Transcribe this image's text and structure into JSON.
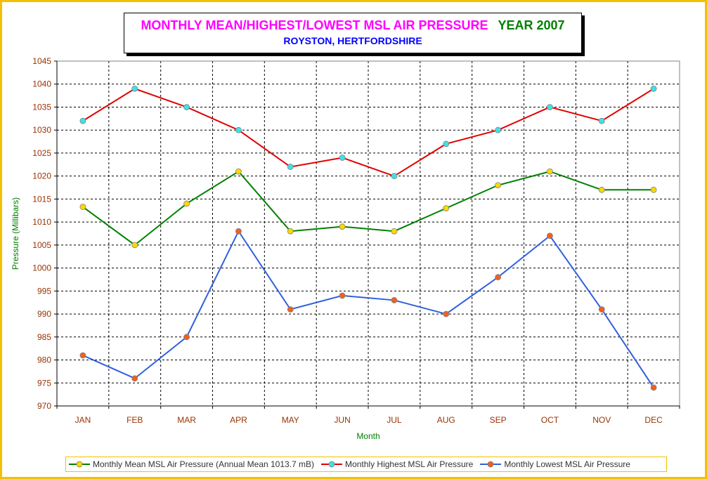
{
  "title": {
    "main": "MONTHLY MEAN/HIGHEST/LOWEST MSL AIR PRESSURE",
    "year": "YEAR 2007",
    "subtitle": "ROYSTON, HERTFORDSHIRE"
  },
  "colors": {
    "border": "#f2c200",
    "title_main": "#ff00ff",
    "title_year": "#008000",
    "subtitle": "#0000ff",
    "tick_labels": "#993300",
    "axis_labels": "#008000",
    "grid": "#000000"
  },
  "chart_data": {
    "type": "line",
    "xlabel": "Month",
    "ylabel": "Pressure (Millibars)",
    "ylim": [
      970,
      1045
    ],
    "ytick_step": 5,
    "grid": true,
    "grid_style": "dashed",
    "legend_position": "bottom",
    "categories": [
      "JAN",
      "FEB",
      "MAR",
      "APR",
      "MAY",
      "JUN",
      "JUL",
      "AUG",
      "SEP",
      "OCT",
      "NOV",
      "DEC"
    ],
    "series": [
      {
        "name": "Monthly Mean MSL Air Pressure (Annual Mean 1013.7 mB)",
        "line_color": "#008000",
        "marker_color": "#ffd700",
        "values": [
          1013.3,
          1005,
          1014,
          1021,
          1008,
          1009,
          1008,
          1013,
          1018,
          1021,
          1017,
          1017
        ]
      },
      {
        "name": "Monthly Highest MSL Air Pressure",
        "line_color": "#e00000",
        "marker_color": "#40e0e8",
        "values": [
          1032,
          1039,
          1035,
          1030,
          1022,
          1024,
          1020,
          1027,
          1030,
          1035,
          1032,
          1039
        ]
      },
      {
        "name": "Monthly Lowest MSL Air Pressure",
        "line_color": "#3060e0",
        "marker_color": "#f06020",
        "values": [
          981,
          976,
          985,
          1008,
          991,
          994,
          993,
          990,
          998,
          1007,
          991,
          974
        ]
      }
    ]
  }
}
